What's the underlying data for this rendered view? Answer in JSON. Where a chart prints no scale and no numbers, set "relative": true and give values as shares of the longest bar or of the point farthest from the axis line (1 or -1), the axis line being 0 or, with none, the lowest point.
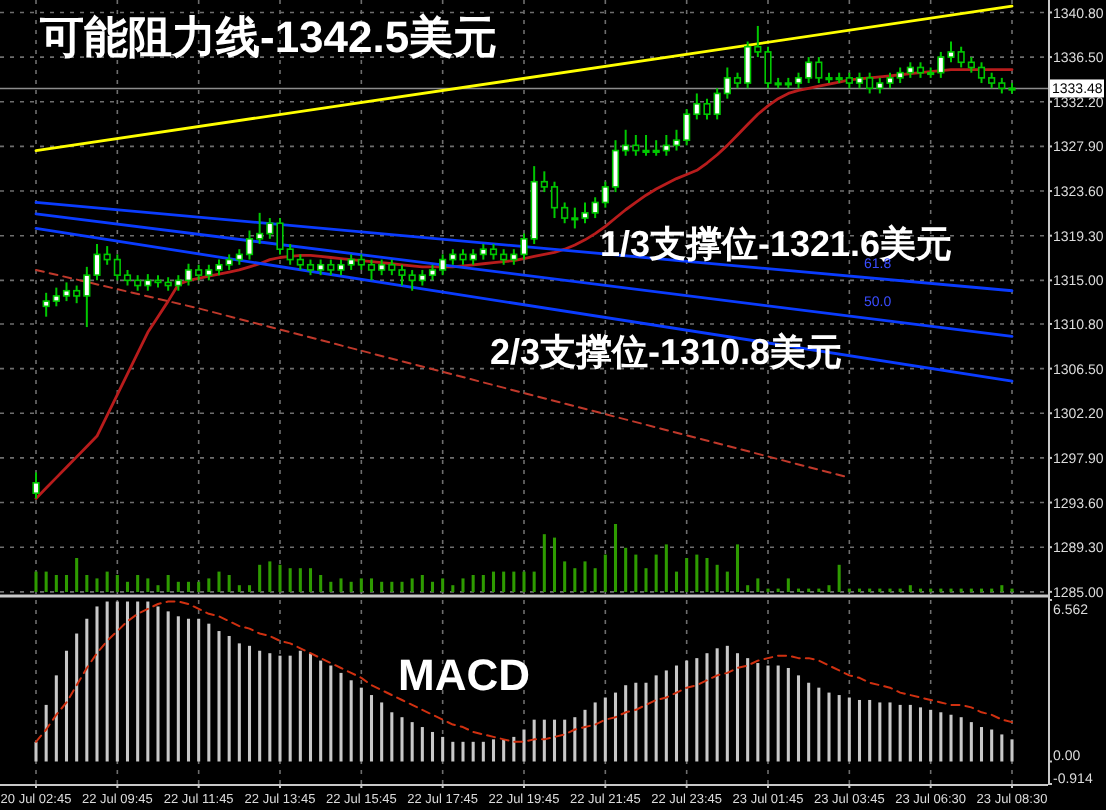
{
  "chart_data": [
    {
      "type": "candlestick",
      "color": "#00c800",
      "grid": true,
      "tick_labels": "y",
      "categories": [
        "20 Jul 02:45",
        null,
        null,
        null,
        null,
        null,
        null,
        null,
        "22 Jul 09:45",
        null,
        null,
        null,
        null,
        null,
        null,
        null,
        "22 Jul 11:45",
        null,
        null,
        null,
        null,
        null,
        null,
        null,
        "22 Jul 13:45",
        null,
        null,
        null,
        null,
        null,
        null,
        null,
        "22 Jul 15:45",
        null,
        null,
        null,
        null,
        null,
        null,
        null,
        "22 Jul 17:45",
        null,
        null,
        null,
        null,
        null,
        null,
        null,
        "22 Jul 19:45",
        null,
        null,
        null,
        null,
        null,
        null,
        null,
        "22 Jul 21:45",
        null,
        null,
        null,
        null,
        null,
        null,
        null,
        "22 Jul 23:45",
        null,
        null,
        null,
        null,
        null,
        null,
        null,
        "23 Jul 01:45",
        null,
        null,
        null,
        null,
        null,
        null,
        null,
        "23 Jul 03:45",
        null,
        null,
        null,
        null,
        null,
        null,
        null,
        "23 Jul 06:30",
        null,
        null,
        null,
        null,
        null,
        null,
        null,
        "23 Jul 08:30"
      ],
      "ylim": [
        1284.6,
        1342.0
      ],
      "yticks": [
        {
          "value": 1340.8,
          "label": "1340.80"
        },
        {
          "value": 1336.5,
          "label": "1336.50"
        },
        {
          "value": 1332.2,
          "label": "1332.20"
        },
        {
          "value": 1327.9,
          "label": "1327.90"
        },
        {
          "value": 1323.6,
          "label": "1323.60"
        },
        {
          "value": 1319.3,
          "label": "1319.30"
        },
        {
          "value": 1315,
          "label": "1315.00"
        },
        {
          "value": 1310.8,
          "label": "1310.80"
        },
        {
          "value": 1306.5,
          "label": "1306.50"
        },
        {
          "value": 1302.2,
          "label": "1302.20"
        },
        {
          "value": 1297.9,
          "label": "1297.90"
        },
        {
          "value": 1293.6,
          "label": "1293.60"
        },
        {
          "value": 1289.3,
          "label": "1289.30"
        },
        {
          "value": 1285,
          "label": "1285.00"
        }
      ],
      "ohlc": [
        [
          1294.5,
          1296.5,
          1294.0,
          1295.5
        ],
        [
          1312.5,
          1313.8,
          1311.5,
          1313.0
        ],
        [
          1313.0,
          1314.3,
          1312.5,
          1313.5
        ],
        [
          1313.5,
          1314.8,
          1313.0,
          1314.0
        ],
        [
          1314.0,
          1314.5,
          1312.8,
          1313.5
        ],
        [
          1313.5,
          1316.3,
          1310.5,
          1315.5
        ],
        [
          1315.5,
          1318.5,
          1315.0,
          1317.5
        ],
        [
          1317.5,
          1318.3,
          1316.5,
          1317.0
        ],
        [
          1317.0,
          1317.5,
          1315.0,
          1315.5
        ],
        [
          1315.5,
          1316.0,
          1314.5,
          1315.0
        ],
        [
          1315.0,
          1315.5,
          1314.0,
          1314.5
        ],
        [
          1314.5,
          1315.6,
          1314.0,
          1315.0
        ],
        [
          1315.0,
          1315.5,
          1314.3,
          1314.8
        ],
        [
          1314.8,
          1315.3,
          1314.0,
          1314.5
        ],
        [
          1314.5,
          1315.5,
          1314.0,
          1315.0
        ],
        [
          1315.0,
          1316.6,
          1314.5,
          1316.0
        ],
        [
          1316.0,
          1316.5,
          1315.0,
          1315.5
        ],
        [
          1315.5,
          1316.5,
          1315.0,
          1316.0
        ],
        [
          1316.0,
          1317.0,
          1315.5,
          1316.5
        ],
        [
          1316.5,
          1317.5,
          1316.0,
          1317.0
        ],
        [
          1317.0,
          1318.0,
          1316.5,
          1317.5
        ],
        [
          1317.5,
          1319.8,
          1317.0,
          1319.0
        ],
        [
          1319.0,
          1321.5,
          1318.5,
          1319.5
        ],
        [
          1319.5,
          1321.0,
          1319.0,
          1320.5
        ],
        [
          1320.5,
          1321.0,
          1317.5,
          1318.0
        ],
        [
          1318.0,
          1318.5,
          1316.5,
          1317.0
        ],
        [
          1317.0,
          1317.5,
          1316.0,
          1316.5
        ],
        [
          1316.5,
          1317.0,
          1315.5,
          1316.0
        ],
        [
          1316.0,
          1317.0,
          1315.5,
          1316.5
        ],
        [
          1316.5,
          1317.0,
          1315.5,
          1316.0
        ],
        [
          1316.0,
          1317.0,
          1315.5,
          1316.5
        ],
        [
          1316.5,
          1317.5,
          1316.0,
          1317.0
        ],
        [
          1317.0,
          1317.5,
          1316.0,
          1316.5
        ],
        [
          1316.5,
          1317.0,
          1315.0,
          1316.0
        ],
        [
          1316.0,
          1317.0,
          1315.5,
          1316.5
        ],
        [
          1316.5,
          1317.0,
          1315.5,
          1316.0
        ],
        [
          1316.0,
          1316.5,
          1314.5,
          1315.5
        ],
        [
          1315.5,
          1316.0,
          1314.0,
          1315.0
        ],
        [
          1315.0,
          1316.0,
          1314.5,
          1315.5
        ],
        [
          1315.5,
          1316.5,
          1315.0,
          1316.0
        ],
        [
          1316.0,
          1317.5,
          1315.5,
          1317.0
        ],
        [
          1317.0,
          1318.0,
          1316.5,
          1317.5
        ],
        [
          1317.5,
          1318.0,
          1316.5,
          1317.0
        ],
        [
          1317.0,
          1318.0,
          1316.5,
          1317.5
        ],
        [
          1317.5,
          1318.5,
          1317.0,
          1318.0
        ],
        [
          1318.0,
          1318.5,
          1317.0,
          1317.5
        ],
        [
          1317.5,
          1318.0,
          1316.5,
          1317.0
        ],
        [
          1317.0,
          1318.0,
          1316.5,
          1317.5
        ],
        [
          1317.5,
          1319.5,
          1317.0,
          1319.0
        ],
        [
          1319.0,
          1326.0,
          1318.5,
          1324.5
        ],
        [
          1324.5,
          1325.5,
          1323.5,
          1324.0
        ],
        [
          1324.0,
          1324.5,
          1321.0,
          1322.0
        ],
        [
          1322.0,
          1322.5,
          1320.5,
          1321.0
        ],
        [
          1321.0,
          1322.0,
          1320.0,
          1321.0
        ],
        [
          1321.0,
          1322.5,
          1320.5,
          1321.5
        ],
        [
          1321.5,
          1323.0,
          1321.0,
          1322.5
        ],
        [
          1322.5,
          1324.5,
          1322.0,
          1324.0
        ],
        [
          1324.0,
          1328.5,
          1323.5,
          1327.5
        ],
        [
          1327.5,
          1329.5,
          1327.0,
          1328.0
        ],
        [
          1328.0,
          1329.0,
          1327.0,
          1327.5
        ],
        [
          1327.5,
          1329.0,
          1327.0,
          1327.5
        ],
        [
          1327.5,
          1328.5,
          1327.0,
          1327.5
        ],
        [
          1327.5,
          1329.0,
          1327.0,
          1328.0
        ],
        [
          1328.0,
          1329.5,
          1327.5,
          1328.5
        ],
        [
          1328.5,
          1331.5,
          1328.0,
          1331.0
        ],
        [
          1331.0,
          1333.0,
          1330.5,
          1332.0
        ],
        [
          1332.0,
          1332.5,
          1330.5,
          1331.0
        ],
        [
          1331.0,
          1333.5,
          1330.5,
          1333.0
        ],
        [
          1333.0,
          1335.5,
          1332.5,
          1334.5
        ],
        [
          1334.5,
          1335.0,
          1333.5,
          1334.0
        ],
        [
          1334.0,
          1338.0,
          1333.5,
          1337.5
        ],
        [
          1337.5,
          1339.5,
          1336.5,
          1337.0
        ],
        [
          1337.0,
          1337.5,
          1333.5,
          1334.0
        ],
        [
          1334.0,
          1334.5,
          1333.5,
          1334.0
        ],
        [
          1334.0,
          1334.5,
          1333.5,
          1334.0
        ],
        [
          1334.0,
          1335.0,
          1333.5,
          1334.5
        ],
        [
          1334.5,
          1336.5,
          1334.0,
          1336.0
        ],
        [
          1336.0,
          1336.5,
          1334.0,
          1334.5
        ],
        [
          1334.5,
          1335.0,
          1334.0,
          1334.5
        ],
        [
          1334.5,
          1335.0,
          1334.0,
          1334.5
        ],
        [
          1334.5,
          1335.0,
          1333.5,
          1334.0
        ],
        [
          1334.0,
          1335.0,
          1333.5,
          1334.5
        ],
        [
          1334.5,
          1335.0,
          1333.0,
          1333.5
        ],
        [
          1333.5,
          1334.5,
          1333.0,
          1334.0
        ],
        [
          1334.0,
          1335.0,
          1333.5,
          1334.5
        ],
        [
          1334.5,
          1335.5,
          1334.0,
          1335.0
        ],
        [
          1335.0,
          1336.0,
          1334.5,
          1335.5
        ],
        [
          1335.5,
          1336.0,
          1334.5,
          1335.0
        ],
        [
          1335.0,
          1335.5,
          1334.5,
          1335.0
        ],
        [
          1335.0,
          1337.0,
          1334.5,
          1336.5
        ],
        [
          1336.5,
          1338.0,
          1336.0,
          1337.0
        ],
        [
          1337.0,
          1337.5,
          1335.5,
          1336.0
        ],
        [
          1336.0,
          1336.5,
          1335.0,
          1335.5
        ],
        [
          1335.5,
          1336.0,
          1334.0,
          1334.5
        ],
        [
          1334.5,
          1335.0,
          1333.5,
          1334.0
        ],
        [
          1334.0,
          1334.5,
          1333.0,
          1333.5
        ],
        [
          1333.5,
          1334.0,
          1333.0,
          1333.5
        ]
      ],
      "series": [
        {
          "type": "line",
          "color": "#b81c1c",
          "values": [
            1294,
            1295,
            1296,
            1297,
            1298,
            1299,
            1300,
            1302,
            1304,
            1306,
            1308,
            1310,
            1311.5,
            1313,
            1314.6,
            1315,
            1315.2,
            1315.4,
            1315.6,
            1315.8,
            1316,
            1316.3,
            1316.6,
            1317,
            1317.2,
            1317.3,
            1317.4,
            1317.4,
            1317.3,
            1317.2,
            1317.1,
            1317,
            1316.9,
            1316.8,
            1316.7,
            1316.6,
            1316.5,
            1316.4,
            1316.3,
            1316.3,
            1316.3,
            1316.3,
            1316.4,
            1316.5,
            1316.6,
            1316.7,
            1316.8,
            1316.9,
            1317.1,
            1317.3,
            1317.5,
            1317.7,
            1318,
            1318.4,
            1318.9,
            1319.5,
            1320.2,
            1321,
            1321.8,
            1322.5,
            1323.2,
            1323.8,
            1324.3,
            1324.8,
            1325.2,
            1325.6,
            1326.3,
            1327.1,
            1328,
            1329,
            1330,
            1331,
            1331.8,
            1332.5,
            1333,
            1333.3,
            1333.5,
            1333.7,
            1333.9,
            1334.1,
            1334.3,
            1334.4,
            1334.5,
            1334.6,
            1334.7,
            1334.8,
            1334.9,
            1335,
            1335.1,
            1335.2,
            1335.3,
            1335.3,
            1335.3,
            1335.3,
            1335.3,
            1335.3,
            1335.3
          ]
        },
        {
          "type": "line",
          "color": "#ffff00",
          "x": [
            "20 Jul 02:45",
            "23 Jul 08:30"
          ],
          "values": [
            1327.5,
            1341.4
          ]
        },
        {
          "type": "line",
          "color": "#0a3cff",
          "x": [
            "20 Jul 02:45",
            "23 Jul 08:30"
          ],
          "values": [
            1322.5,
            1314.0
          ]
        },
        {
          "type": "line",
          "color": "#0a3cff",
          "x": [
            "20 Jul 02:45",
            "23 Jul 08:30"
          ],
          "values": [
            1321.4,
            1309.6
          ]
        },
        {
          "type": "line",
          "color": "#0a3cff",
          "x": [
            "20 Jul 02:45",
            "23 Jul 08:30"
          ],
          "values": [
            1320.0,
            1305.3
          ]
        },
        {
          "type": "line",
          "color": "#c0392b",
          "line_style": "dashed",
          "x": [
            "20 Jul 02:45",
            "22 Jul 11:45",
            "23 Jul 03:45"
          ],
          "values": [
            1316.0,
            1312.3,
            1296.0
          ]
        }
      ],
      "ref_lines": [
        {
          "axis": "y",
          "value": 1333.48,
          "label": "1333.48",
          "color": "#8c8c8c"
        }
      ],
      "annotations": [
        "可能阻力线-1342.5美元",
        "1/3支撑位-1321.6美元",
        "2/3支撑位-1310.8美元",
        "61.8",
        "50.0"
      ]
    },
    {
      "type": "bar",
      "relative": true,
      "color": "#2e9b00",
      "tick_labels": false,
      "values": [
        0.3,
        0.3,
        0.25,
        0.25,
        0.5,
        0.25,
        0.2,
        0.3,
        0.25,
        0.15,
        0.25,
        0.2,
        0.1,
        0.25,
        0.15,
        0.15,
        0.15,
        0.2,
        0.3,
        0.25,
        0.1,
        0.1,
        0.4,
        0.45,
        0.4,
        0.35,
        0.35,
        0.35,
        0.25,
        0.15,
        0.2,
        0.15,
        0.2,
        0.2,
        0.15,
        0.15,
        0.15,
        0.2,
        0.25,
        0.15,
        0.2,
        0.1,
        0.2,
        0.25,
        0.25,
        0.3,
        0.3,
        0.3,
        0.3,
        0.3,
        0.85,
        0.8,
        0.45,
        0.35,
        0.45,
        0.35,
        0.55,
        1.0,
        0.65,
        0.55,
        0.35,
        0.55,
        0.7,
        0.3,
        0.5,
        0.55,
        0.5,
        0.4,
        0.3,
        0.7,
        0.1,
        0.2,
        0.05,
        0.05,
        0.2,
        0.05,
        0.05,
        0.05,
        0.1,
        0.4,
        0.05,
        0.05,
        0.05,
        0.05,
        0.05,
        0.05,
        0.1,
        0.05,
        0.05,
        0.05,
        0.05,
        0.05,
        0.05,
        0.05,
        0.05,
        0.1,
        0.05
      ]
    },
    {
      "type": "bar",
      "grid": "x",
      "categories": [
        "20 Jul 02:45",
        null,
        null,
        null,
        null,
        null,
        null,
        null,
        "22 Jul 09:45",
        null,
        null,
        null,
        null,
        null,
        null,
        null,
        "22 Jul 11:45",
        null,
        null,
        null,
        null,
        null,
        null,
        null,
        "22 Jul 13:45",
        null,
        null,
        null,
        null,
        null,
        null,
        null,
        "22 Jul 15:45",
        null,
        null,
        null,
        null,
        null,
        null,
        null,
        "22 Jul 17:45",
        null,
        null,
        null,
        null,
        null,
        null,
        null,
        "22 Jul 19:45",
        null,
        null,
        null,
        null,
        null,
        null,
        null,
        "22 Jul 21:45",
        null,
        null,
        null,
        null,
        null,
        null,
        null,
        "22 Jul 23:45",
        null,
        null,
        null,
        null,
        null,
        null,
        null,
        "23 Jul 01:45",
        null,
        null,
        null,
        null,
        null,
        null,
        null,
        "23 Jul 03:45",
        null,
        null,
        null,
        null,
        null,
        null,
        null,
        "23 Jul 06:30",
        null,
        null,
        null,
        null,
        null,
        null,
        null,
        "23 Jul 08:30"
      ],
      "ylim": [
        -0.914,
        6.562
      ],
      "yticks": [
        {
          "value": 6.562,
          "label": "6.562"
        },
        {
          "value": 0,
          "label": "0.00"
        },
        {
          "value": -0.914,
          "label": "-0.914"
        }
      ],
      "series": [
        {
          "type": "bar",
          "color": "#c8c8c8",
          "values": [
            0.8,
            2.3,
            3.5,
            4.5,
            5.2,
            5.8,
            6.3,
            6.5,
            6.5,
            6.5,
            6.5,
            6.5,
            6.3,
            6.1,
            5.9,
            5.8,
            5.8,
            5.6,
            5.3,
            5.1,
            4.8,
            4.7,
            4.5,
            4.4,
            4.3,
            4.3,
            4.5,
            4.4,
            4.1,
            3.9,
            3.6,
            3.3,
            3.0,
            2.7,
            2.4,
            2.0,
            1.8,
            1.6,
            1.4,
            1.2,
            1.0,
            0.8,
            0.8,
            0.8,
            0.8,
            0.9,
            0.9,
            1.0,
            1.3,
            1.7,
            1.7,
            1.7,
            1.7,
            1.8,
            2.1,
            2.4,
            2.6,
            2.8,
            3.1,
            3.2,
            3.2,
            3.5,
            3.7,
            3.9,
            4.1,
            4.2,
            4.4,
            4.6,
            4.7,
            4.4,
            4.2,
            4.0,
            3.9,
            3.9,
            3.8,
            3.5,
            3.2,
            3.0,
            2.8,
            2.7,
            2.6,
            2.5,
            2.5,
            2.4,
            2.4,
            2.3,
            2.3,
            2.2,
            2.1,
            2.0,
            1.9,
            1.8,
            1.6,
            1.4,
            1.3,
            1.1,
            0.9
          ]
        },
        {
          "type": "line",
          "color": "#d03010",
          "line_style": "dashed",
          "values": [
            0.8,
            1.3,
            1.9,
            2.4,
            3.1,
            3.8,
            4.4,
            4.9,
            5.3,
            5.7,
            6.0,
            6.2,
            6.4,
            6.5,
            6.5,
            6.4,
            6.2,
            6.0,
            5.9,
            5.7,
            5.5,
            5.4,
            5.2,
            5.1,
            4.9,
            4.8,
            4.6,
            4.4,
            4.2,
            4.0,
            3.8,
            3.6,
            3.4,
            3.1,
            2.9,
            2.7,
            2.5,
            2.3,
            2.1,
            1.9,
            1.7,
            1.5,
            1.4,
            1.2,
            1.1,
            1.0,
            0.9,
            0.8,
            0.8,
            0.9,
            0.9,
            1.0,
            1.1,
            1.3,
            1.4,
            1.5,
            1.7,
            1.8,
            2.0,
            2.1,
            2.3,
            2.5,
            2.6,
            2.8,
            3.0,
            3.1,
            3.3,
            3.5,
            3.6,
            3.8,
            3.9,
            4.1,
            4.2,
            4.3,
            4.3,
            4.2,
            4.2,
            4.1,
            3.9,
            3.7,
            3.5,
            3.4,
            3.2,
            3.1,
            3.0,
            2.8,
            2.7,
            2.6,
            2.5,
            2.4,
            2.3,
            2.3,
            2.2,
            2.0,
            1.9,
            1.7,
            1.6
          ]
        }
      ],
      "annotations": [
        "MACD"
      ]
    }
  ]
}
